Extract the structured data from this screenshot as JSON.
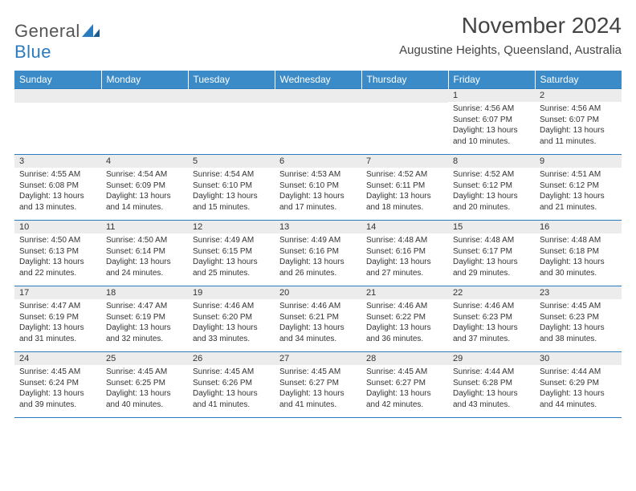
{
  "logo": {
    "text1": "General",
    "text2": "Blue"
  },
  "title": "November 2024",
  "location": "Augustine Heights, Queensland, Australia",
  "header_bg": "#3b8bc8",
  "header_fg": "#ffffff",
  "daynum_bg": "#ececec",
  "border_color": "#2b7bbf",
  "text_color": "#333333",
  "logo_blue": "#2b7bbf",
  "dayNames": [
    "Sunday",
    "Monday",
    "Tuesday",
    "Wednesday",
    "Thursday",
    "Friday",
    "Saturday"
  ],
  "weeks": [
    [
      null,
      null,
      null,
      null,
      null,
      {
        "n": "1",
        "sr": "4:56 AM",
        "ss": "6:07 PM",
        "dl": "13 hours and 10 minutes."
      },
      {
        "n": "2",
        "sr": "4:56 AM",
        "ss": "6:07 PM",
        "dl": "13 hours and 11 minutes."
      }
    ],
    [
      {
        "n": "3",
        "sr": "4:55 AM",
        "ss": "6:08 PM",
        "dl": "13 hours and 13 minutes."
      },
      {
        "n": "4",
        "sr": "4:54 AM",
        "ss": "6:09 PM",
        "dl": "13 hours and 14 minutes."
      },
      {
        "n": "5",
        "sr": "4:54 AM",
        "ss": "6:10 PM",
        "dl": "13 hours and 15 minutes."
      },
      {
        "n": "6",
        "sr": "4:53 AM",
        "ss": "6:10 PM",
        "dl": "13 hours and 17 minutes."
      },
      {
        "n": "7",
        "sr": "4:52 AM",
        "ss": "6:11 PM",
        "dl": "13 hours and 18 minutes."
      },
      {
        "n": "8",
        "sr": "4:52 AM",
        "ss": "6:12 PM",
        "dl": "13 hours and 20 minutes."
      },
      {
        "n": "9",
        "sr": "4:51 AM",
        "ss": "6:12 PM",
        "dl": "13 hours and 21 minutes."
      }
    ],
    [
      {
        "n": "10",
        "sr": "4:50 AM",
        "ss": "6:13 PM",
        "dl": "13 hours and 22 minutes."
      },
      {
        "n": "11",
        "sr": "4:50 AM",
        "ss": "6:14 PM",
        "dl": "13 hours and 24 minutes."
      },
      {
        "n": "12",
        "sr": "4:49 AM",
        "ss": "6:15 PM",
        "dl": "13 hours and 25 minutes."
      },
      {
        "n": "13",
        "sr": "4:49 AM",
        "ss": "6:16 PM",
        "dl": "13 hours and 26 minutes."
      },
      {
        "n": "14",
        "sr": "4:48 AM",
        "ss": "6:16 PM",
        "dl": "13 hours and 27 minutes."
      },
      {
        "n": "15",
        "sr": "4:48 AM",
        "ss": "6:17 PM",
        "dl": "13 hours and 29 minutes."
      },
      {
        "n": "16",
        "sr": "4:48 AM",
        "ss": "6:18 PM",
        "dl": "13 hours and 30 minutes."
      }
    ],
    [
      {
        "n": "17",
        "sr": "4:47 AM",
        "ss": "6:19 PM",
        "dl": "13 hours and 31 minutes."
      },
      {
        "n": "18",
        "sr": "4:47 AM",
        "ss": "6:19 PM",
        "dl": "13 hours and 32 minutes."
      },
      {
        "n": "19",
        "sr": "4:46 AM",
        "ss": "6:20 PM",
        "dl": "13 hours and 33 minutes."
      },
      {
        "n": "20",
        "sr": "4:46 AM",
        "ss": "6:21 PM",
        "dl": "13 hours and 34 minutes."
      },
      {
        "n": "21",
        "sr": "4:46 AM",
        "ss": "6:22 PM",
        "dl": "13 hours and 36 minutes."
      },
      {
        "n": "22",
        "sr": "4:46 AM",
        "ss": "6:23 PM",
        "dl": "13 hours and 37 minutes."
      },
      {
        "n": "23",
        "sr": "4:45 AM",
        "ss": "6:23 PM",
        "dl": "13 hours and 38 minutes."
      }
    ],
    [
      {
        "n": "24",
        "sr": "4:45 AM",
        "ss": "6:24 PM",
        "dl": "13 hours and 39 minutes."
      },
      {
        "n": "25",
        "sr": "4:45 AM",
        "ss": "6:25 PM",
        "dl": "13 hours and 40 minutes."
      },
      {
        "n": "26",
        "sr": "4:45 AM",
        "ss": "6:26 PM",
        "dl": "13 hours and 41 minutes."
      },
      {
        "n": "27",
        "sr": "4:45 AM",
        "ss": "6:27 PM",
        "dl": "13 hours and 41 minutes."
      },
      {
        "n": "28",
        "sr": "4:45 AM",
        "ss": "6:27 PM",
        "dl": "13 hours and 42 minutes."
      },
      {
        "n": "29",
        "sr": "4:44 AM",
        "ss": "6:28 PM",
        "dl": "13 hours and 43 minutes."
      },
      {
        "n": "30",
        "sr": "4:44 AM",
        "ss": "6:29 PM",
        "dl": "13 hours and 44 minutes."
      }
    ]
  ],
  "labels": {
    "sunrise": "Sunrise:",
    "sunset": "Sunset:",
    "daylight": "Daylight:"
  }
}
